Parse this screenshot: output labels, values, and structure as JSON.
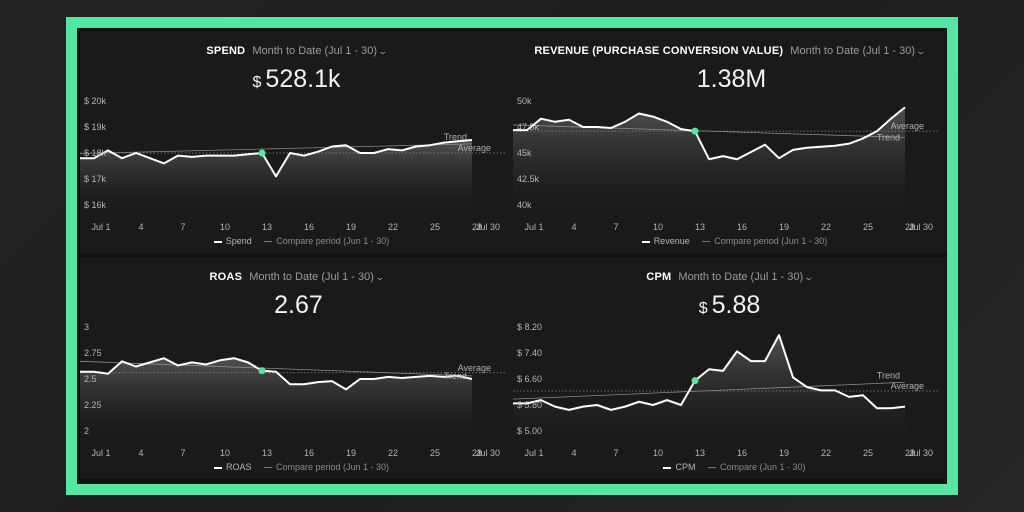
{
  "colors": {
    "frame": "#55e6a3",
    "accent": "#55e6a3",
    "line": "#ffffff",
    "avg": "#888888"
  },
  "panels": [
    {
      "id": "spend",
      "title": "SPEND",
      "period": "Month to Date (Jul 1 - 30)",
      "value_prefix": "$",
      "value": "528.1k",
      "legend_primary": "Spend",
      "legend_compare": "Compare period (Jun 1 - 30)",
      "avg_label": "Average",
      "trend_label": "Trend",
      "y_labels": [
        "$ 20k",
        "$ 19k",
        "$ 18k",
        "$ 17k",
        "$ 16k"
      ],
      "x_labels": [
        "Jul 1",
        "4",
        "7",
        "10",
        "13",
        "16",
        "19",
        "22",
        "25",
        "28",
        "Jul 30"
      ]
    },
    {
      "id": "revenue",
      "title": "REVENUE (PURCHASE CONVERSION VALUE)",
      "period": "Month to Date (Jul 1 - 30)",
      "value_prefix": "",
      "value": "1.38M",
      "legend_primary": "Revenue",
      "legend_compare": "Compare period (Jun 1 - 30)",
      "avg_label": "Average",
      "trend_label": "Trend",
      "y_labels": [
        "50k",
        "47.5k",
        "45k",
        "42.5k",
        "40k"
      ],
      "x_labels": [
        "Jul 1",
        "4",
        "7",
        "10",
        "13",
        "16",
        "19",
        "22",
        "25",
        "28",
        "Jul 30"
      ]
    },
    {
      "id": "roas",
      "title": "ROAS",
      "period": "Month to Date (Jul 1 - 30)",
      "value_prefix": "",
      "value": "2.67",
      "legend_primary": "ROAS",
      "legend_compare": "Compare period (Jun 1 - 30)",
      "avg_label": "Average",
      "trend_label": "Trend",
      "y_labels": [
        "3",
        "2.75",
        "2.5",
        "2.25",
        "2"
      ],
      "x_labels": [
        "Jul 1",
        "4",
        "7",
        "10",
        "13",
        "16",
        "19",
        "22",
        "25",
        "28",
        "Jul 30"
      ]
    },
    {
      "id": "cpm",
      "title": "CPM",
      "period": "Month to Date (Jul 1 - 30)",
      "value_prefix": "$",
      "value": "5.88",
      "legend_primary": "CPM",
      "legend_compare": "Compare (Jun 1 - 30)",
      "avg_label": "Average",
      "trend_label": "Trend",
      "y_labels": [
        "$ 8.20",
        "$ 7.40",
        "$ 6.60",
        "$ 5.80",
        "$ 5.00"
      ],
      "x_labels": [
        "Jul 1",
        "4",
        "7",
        "10",
        "13",
        "16",
        "19",
        "22",
        "25",
        "28",
        "Jul 30"
      ]
    }
  ],
  "chart_data": [
    {
      "type": "area",
      "title": "SPEND",
      "x": [
        1,
        2,
        3,
        4,
        5,
        6,
        7,
        8,
        9,
        10,
        11,
        12,
        13,
        14,
        15,
        16,
        17,
        18,
        19,
        20,
        21,
        22,
        23,
        24,
        25,
        26,
        27,
        28,
        29
      ],
      "ylim": [
        16000,
        20000
      ],
      "yticks": [
        20000,
        19000,
        18000,
        17000,
        16000
      ],
      "series": [
        {
          "name": "Spend",
          "values": [
            17800,
            17800,
            18100,
            17800,
            18000,
            17800,
            17600,
            17900,
            17850,
            17900,
            17900,
            17900,
            17950,
            18000,
            17100,
            18000,
            17900,
            18050,
            18250,
            18300,
            18000,
            18000,
            18150,
            18100,
            18250,
            18300,
            18400,
            18450,
            18500
          ]
        }
      ],
      "average": 18000,
      "trend": [
        17980,
        18350
      ],
      "highlight_day": 14
    },
    {
      "type": "area",
      "title": "REVENUE (PURCHASE CONVERSION VALUE)",
      "x": [
        1,
        2,
        3,
        4,
        5,
        6,
        7,
        8,
        9,
        10,
        11,
        12,
        13,
        14,
        15,
        16,
        17,
        18,
        19,
        20,
        21,
        22,
        23,
        24,
        25,
        26,
        27,
        28,
        29
      ],
      "ylim": [
        40000,
        50000
      ],
      "yticks": [
        50000,
        47500,
        45000,
        42500,
        40000
      ],
      "series": [
        {
          "name": "Revenue",
          "values": [
            47200,
            47200,
            48300,
            48000,
            48200,
            47500,
            47500,
            47400,
            48000,
            48800,
            48500,
            48000,
            47300,
            47100,
            44400,
            44700,
            44400,
            45100,
            45800,
            44500,
            45300,
            45500,
            45600,
            45700,
            45900,
            46400,
            47100,
            48300,
            49400
          ]
        }
      ],
      "average": 47100,
      "trend": [
        47700,
        46500
      ],
      "highlight_day": 14
    },
    {
      "type": "area",
      "title": "ROAS",
      "x": [
        1,
        2,
        3,
        4,
        5,
        6,
        7,
        8,
        9,
        10,
        11,
        12,
        13,
        14,
        15,
        16,
        17,
        18,
        19,
        20,
        21,
        22,
        23,
        24,
        25,
        26,
        27,
        28,
        29
      ],
      "ylim": [
        2,
        3
      ],
      "yticks": [
        3,
        2.75,
        2.5,
        2.25,
        2
      ],
      "series": [
        {
          "name": "ROAS",
          "values": [
            2.57,
            2.57,
            2.55,
            2.67,
            2.62,
            2.66,
            2.7,
            2.63,
            2.66,
            2.64,
            2.68,
            2.7,
            2.66,
            2.58,
            2.57,
            2.45,
            2.45,
            2.47,
            2.48,
            2.4,
            2.5,
            2.5,
            2.52,
            2.51,
            2.52,
            2.53,
            2.52,
            2.53,
            2.5
          ]
        }
      ],
      "average": 2.56,
      "trend": [
        2.67,
        2.53
      ],
      "highlight_day": 14
    },
    {
      "type": "area",
      "title": "CPM",
      "x": [
        1,
        2,
        3,
        4,
        5,
        6,
        7,
        8,
        9,
        10,
        11,
        12,
        13,
        14,
        15,
        16,
        17,
        18,
        19,
        20,
        21,
        22,
        23,
        24,
        25,
        26,
        27,
        28,
        29
      ],
      "ylim": [
        5.0,
        8.2
      ],
      "yticks": [
        8.2,
        7.4,
        6.6,
        5.8,
        5.0
      ],
      "series": [
        {
          "name": "CPM",
          "values": [
            5.85,
            5.85,
            5.95,
            5.75,
            5.65,
            5.75,
            5.8,
            5.65,
            5.75,
            5.9,
            5.8,
            5.95,
            5.8,
            6.55,
            6.9,
            6.85,
            7.45,
            7.15,
            7.15,
            7.95,
            6.65,
            6.35,
            6.25,
            6.25,
            6.05,
            6.1,
            5.7,
            5.7,
            5.75
          ]
        }
      ],
      "average": 6.23,
      "trend": [
        5.98,
        6.5
      ],
      "highlight_day": 14
    }
  ]
}
